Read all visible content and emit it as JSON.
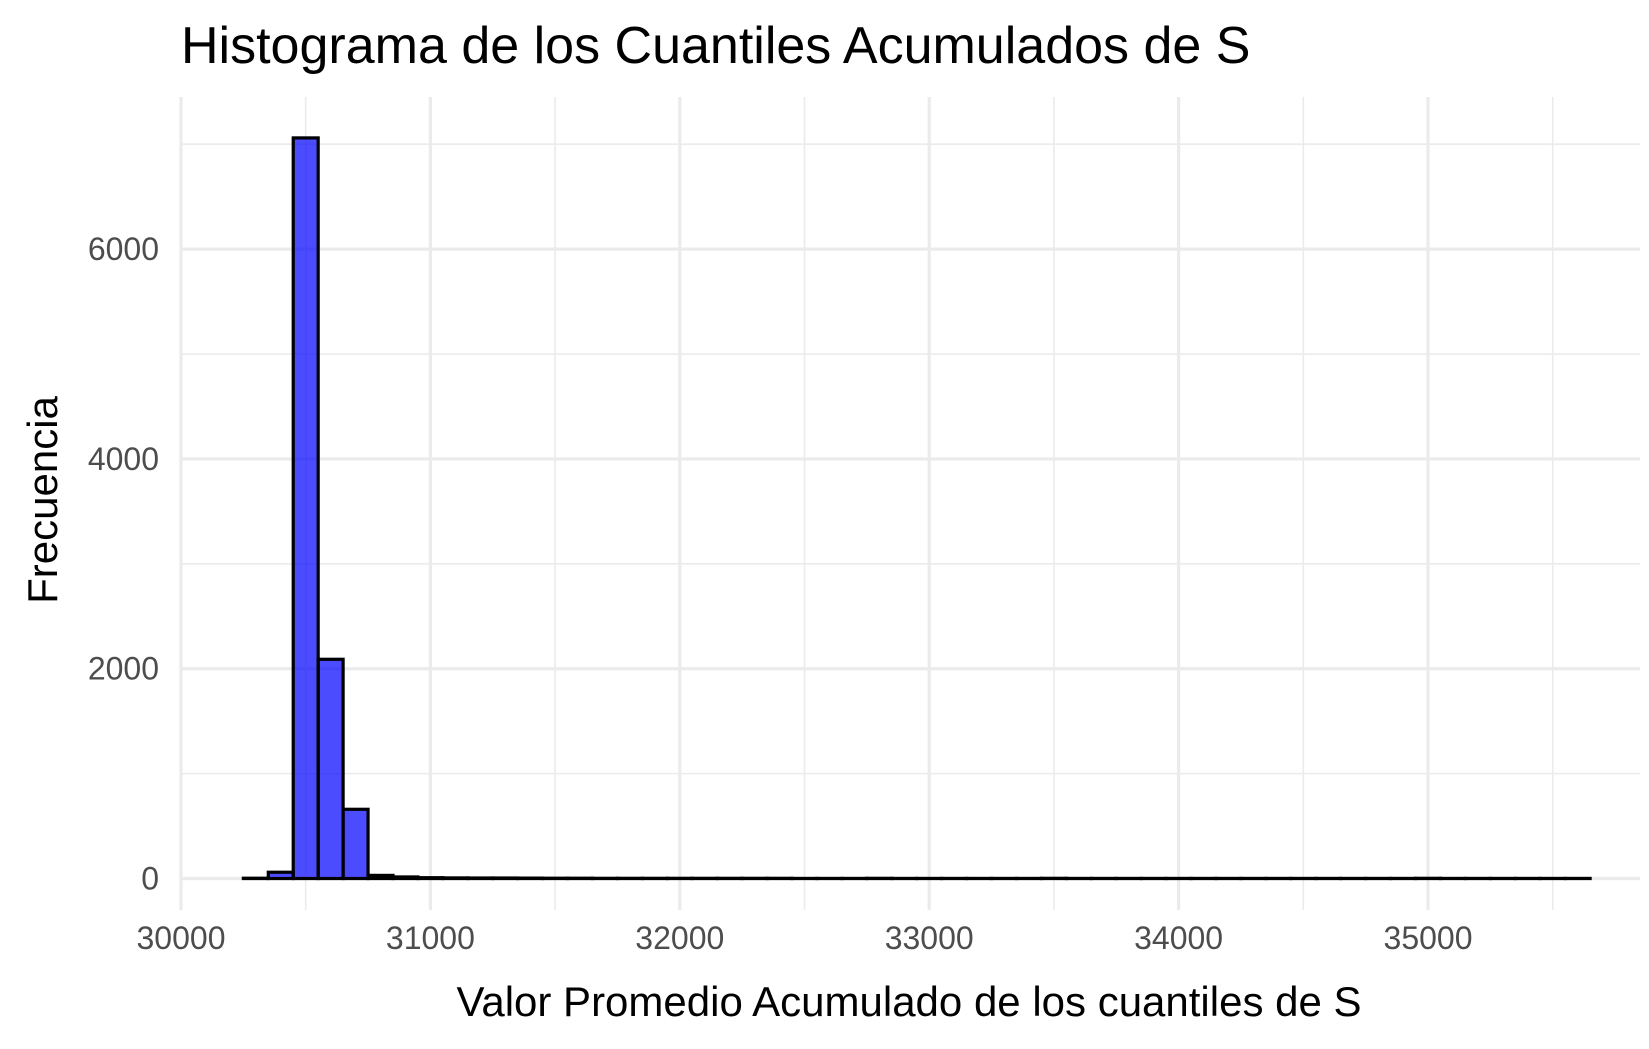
{
  "chart_data": {
    "type": "bar",
    "title": "Histograma de los Cuantiles Acumulados de S",
    "xlabel": "Valor Promedio Acumulado de los cuantiles de S",
    "ylabel": "Frecuencia",
    "bin_width": 100,
    "bin_centers": [
      30300,
      30400,
      30500,
      30600,
      30700,
      30800,
      30900,
      31000,
      31100,
      31200,
      31300,
      31400,
      31500,
      31600,
      31700,
      31800,
      31900,
      32000,
      32100,
      32200,
      32300,
      32400,
      32500,
      32600,
      32700,
      32800,
      32900,
      33000,
      33100,
      33200,
      33300,
      33400,
      33500,
      33600,
      33700,
      33800,
      33900,
      34000,
      34100,
      34200,
      34300,
      34400,
      34500,
      34600,
      34700,
      34800,
      34900,
      35000,
      35100,
      35200,
      35300,
      35400,
      35500,
      35600
    ],
    "values": [
      3,
      60,
      7060,
      2090,
      660,
      30,
      15,
      8,
      6,
      5,
      5,
      4,
      3,
      3,
      2,
      2,
      2,
      2,
      2,
      2,
      2,
      2,
      1,
      1,
      1,
      2,
      1,
      1,
      1,
      1,
      1,
      1,
      2,
      1,
      1,
      1,
      1,
      1,
      1,
      1,
      1,
      1,
      1,
      1,
      1,
      1,
      1,
      2,
      1,
      1,
      1,
      1,
      1,
      1
    ],
    "xlim": [
      30000,
      35850
    ],
    "ylim": [
      -300,
      7450
    ],
    "x_ticks": [
      30000,
      31000,
      32000,
      33000,
      34000,
      35000
    ],
    "x_tick_labels": [
      "30000",
      "31000",
      "32000",
      "33000",
      "34000",
      "35000"
    ],
    "y_ticks": [
      0,
      2000,
      4000,
      6000
    ],
    "y_tick_labels": [
      "0",
      "2000",
      "4000",
      "6000"
    ],
    "grid": true,
    "legend": "none",
    "colors": {
      "bar_fill": "#0000ff",
      "bar_fill_opacity": 0.7,
      "bar_outline": "#000000",
      "grid": "#ebebeb",
      "tick_text": "#4d4d4d",
      "text": "#000000",
      "background": "#ffffff"
    }
  }
}
